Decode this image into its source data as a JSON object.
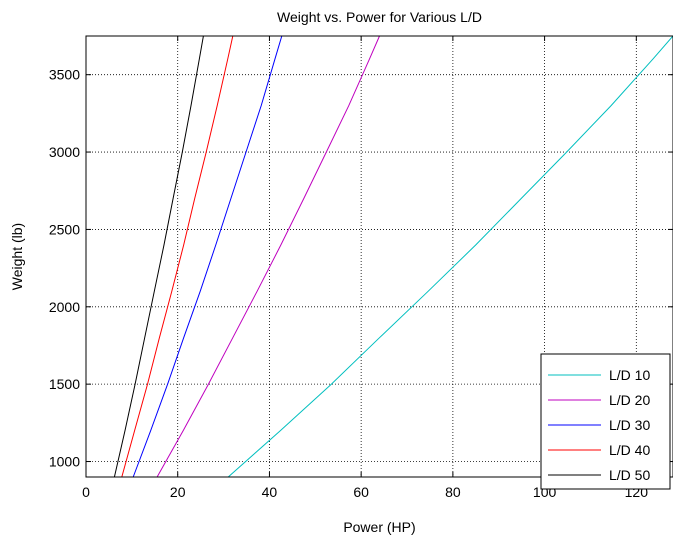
{
  "chart_data": {
    "type": "line",
    "title": "Weight vs. Power for Various L/D",
    "xlabel": "Power (HP)",
    "ylabel": "Weight (lb)",
    "xlim": [
      0,
      128
    ],
    "ylim": [
      900,
      3750
    ],
    "xticks": [
      0,
      20,
      40,
      60,
      80,
      100,
      120
    ],
    "yticks": [
      1000,
      1500,
      2000,
      2500,
      3000,
      3500
    ],
    "grid": "on",
    "legend_position": "bottom-right",
    "series": [
      {
        "name": "L/D 10",
        "color": "#00bfbf",
        "points": [
          [
            31.0,
            900
          ],
          [
            42.4,
            1200
          ],
          [
            53.5,
            1500
          ],
          [
            64.0,
            1800
          ],
          [
            74.6,
            2100
          ],
          [
            85.0,
            2400
          ],
          [
            94.9,
            2700
          ],
          [
            104.8,
            3000
          ],
          [
            114.5,
            3300
          ],
          [
            123.6,
            3600
          ],
          [
            128.0,
            3750
          ]
        ]
      },
      {
        "name": "L/D 20",
        "color": "#bf00bf",
        "points": [
          [
            15.5,
            900
          ],
          [
            21.2,
            1200
          ],
          [
            26.7,
            1500
          ],
          [
            32.0,
            1800
          ],
          [
            37.3,
            2100
          ],
          [
            42.5,
            2400
          ],
          [
            47.5,
            2700
          ],
          [
            52.4,
            3000
          ],
          [
            57.3,
            3300
          ],
          [
            61.8,
            3600
          ],
          [
            64.0,
            3750
          ]
        ]
      },
      {
        "name": "L/D 30",
        "color": "#0000ff",
        "points": [
          [
            10.3,
            900
          ],
          [
            14.1,
            1200
          ],
          [
            17.8,
            1500
          ],
          [
            21.3,
            1800
          ],
          [
            24.9,
            2100
          ],
          [
            28.3,
            2400
          ],
          [
            31.6,
            2700
          ],
          [
            34.9,
            3000
          ],
          [
            38.2,
            3300
          ],
          [
            41.2,
            3600
          ],
          [
            42.7,
            3750
          ]
        ]
      },
      {
        "name": "L/D 40",
        "color": "#ff0000",
        "points": [
          [
            7.8,
            900
          ],
          [
            10.6,
            1200
          ],
          [
            13.4,
            1500
          ],
          [
            16.0,
            1800
          ],
          [
            18.7,
            2100
          ],
          [
            21.3,
            2400
          ],
          [
            23.7,
            2700
          ],
          [
            26.2,
            3000
          ],
          [
            28.6,
            3300
          ],
          [
            30.9,
            3600
          ],
          [
            32.0,
            3750
          ]
        ]
      },
      {
        "name": "L/D 50",
        "color": "#000000",
        "points": [
          [
            6.2,
            900
          ],
          [
            8.5,
            1200
          ],
          [
            10.7,
            1500
          ],
          [
            12.8,
            1800
          ],
          [
            14.9,
            2100
          ],
          [
            17.0,
            2400
          ],
          [
            19.0,
            2700
          ],
          [
            21.0,
            3000
          ],
          [
            22.9,
            3300
          ],
          [
            24.7,
            3600
          ],
          [
            25.6,
            3750
          ]
        ]
      }
    ]
  }
}
